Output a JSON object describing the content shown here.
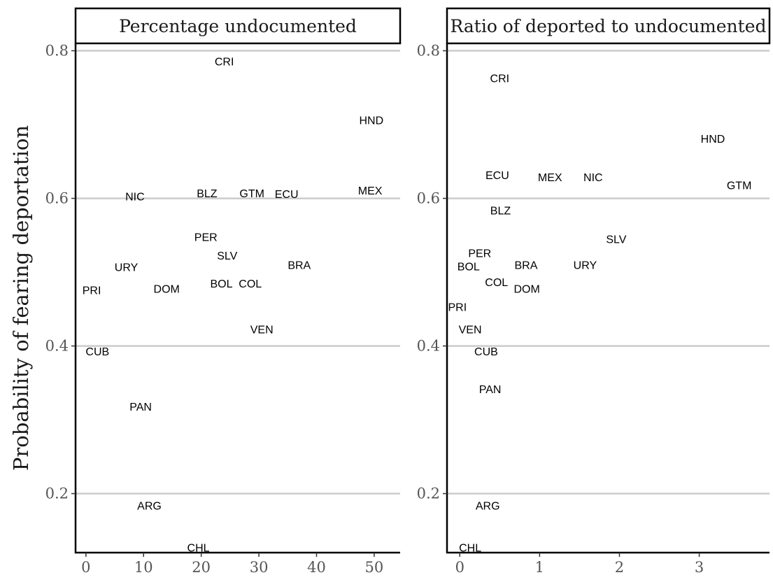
{
  "chart_data": {
    "type": "scatter",
    "marker": "text-labels",
    "y_axis_label": "Probability of fearing deportation",
    "y_ticks": [
      0.2,
      0.4,
      0.6,
      0.8
    ],
    "ylim": [
      0.12,
      0.81
    ],
    "grid": "horizontal-major",
    "panels": [
      {
        "title": "Percentage undocumented",
        "x_ticks": [
          0,
          10,
          20,
          30,
          40,
          50
        ],
        "xlim": [
          -1.8,
          54.5
        ],
        "points": [
          {
            "label": "CRI",
            "x": 24,
            "y": 0.786
          },
          {
            "label": "HND",
            "x": 49.5,
            "y": 0.706
          },
          {
            "label": "NIC",
            "x": 8.5,
            "y": 0.603
          },
          {
            "label": "BLZ",
            "x": 21,
            "y": 0.607
          },
          {
            "label": "GTM",
            "x": 28.8,
            "y": 0.607
          },
          {
            "label": "ECU",
            "x": 34.8,
            "y": 0.606
          },
          {
            "label": "MEX",
            "x": 49.3,
            "y": 0.611
          },
          {
            "label": "PER",
            "x": 20.8,
            "y": 0.548
          },
          {
            "label": "SLV",
            "x": 24.5,
            "y": 0.523
          },
          {
            "label": "URY",
            "x": 7,
            "y": 0.507
          },
          {
            "label": "BRA",
            "x": 37,
            "y": 0.51
          },
          {
            "label": "PRI",
            "x": 1,
            "y": 0.476
          },
          {
            "label": "DOM",
            "x": 14,
            "y": 0.478
          },
          {
            "label": "BOL",
            "x": 23.5,
            "y": 0.485
          },
          {
            "label": "COL",
            "x": 28.5,
            "y": 0.485
          },
          {
            "label": "VEN",
            "x": 30.5,
            "y": 0.423
          },
          {
            "label": "CUB",
            "x": 2,
            "y": 0.393
          },
          {
            "label": "PAN",
            "x": 9.5,
            "y": 0.318
          },
          {
            "label": "ARG",
            "x": 11,
            "y": 0.184
          },
          {
            "label": "CHL",
            "x": 19.5,
            "y": 0.127
          }
        ]
      },
      {
        "title": "Ratio of deported to undocumented",
        "x_ticks": [
          0,
          1,
          2,
          3
        ],
        "xlim": [
          -0.16,
          3.88
        ],
        "points": [
          {
            "label": "CRI",
            "x": 0.5,
            "y": 0.763
          },
          {
            "label": "HND",
            "x": 3.17,
            "y": 0.681
          },
          {
            "label": "ECU",
            "x": 0.47,
            "y": 0.632
          },
          {
            "label": "MEX",
            "x": 1.13,
            "y": 0.629
          },
          {
            "label": "NIC",
            "x": 1.67,
            "y": 0.629
          },
          {
            "label": "GTM",
            "x": 3.5,
            "y": 0.618
          },
          {
            "label": "BLZ",
            "x": 0.51,
            "y": 0.584
          },
          {
            "label": "SLV",
            "x": 1.96,
            "y": 0.545
          },
          {
            "label": "PER",
            "x": 0.25,
            "y": 0.526
          },
          {
            "label": "BOL",
            "x": 0.11,
            "y": 0.508
          },
          {
            "label": "BRA",
            "x": 0.83,
            "y": 0.51
          },
          {
            "label": "URY",
            "x": 1.57,
            "y": 0.51
          },
          {
            "label": "COL",
            "x": 0.46,
            "y": 0.487
          },
          {
            "label": "DOM",
            "x": 0.84,
            "y": 0.478
          },
          {
            "label": "PRI",
            "x": -0.03,
            "y": 0.453
          },
          {
            "label": "VEN",
            "x": 0.13,
            "y": 0.423
          },
          {
            "label": "CUB",
            "x": 0.33,
            "y": 0.393
          },
          {
            "label": "PAN",
            "x": 0.38,
            "y": 0.342
          },
          {
            "label": "ARG",
            "x": 0.35,
            "y": 0.184
          },
          {
            "label": "CHL",
            "x": 0.13,
            "y": 0.127
          }
        ]
      }
    ]
  }
}
